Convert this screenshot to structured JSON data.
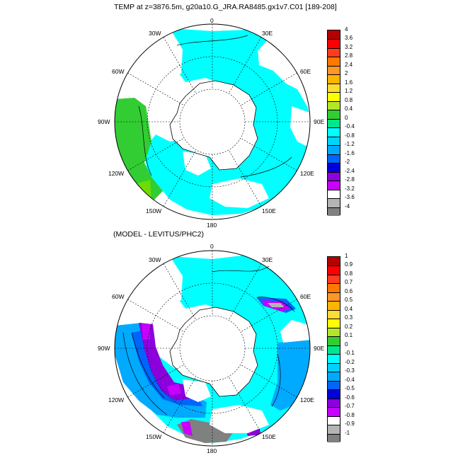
{
  "panels": [
    {
      "title": "TEMP at z=3876.5m, g20a10.G_JRA.RA8485.gx1v7.C01 [189-208]",
      "lon_labels": [
        "0",
        "30E",
        "60E",
        "90E",
        "120E",
        "150E",
        "180",
        "150W",
        "120W",
        "90W",
        "60W",
        "30W"
      ],
      "colorbar": {
        "labels": [
          "4",
          "3.6",
          "3.2",
          "2.8",
          "2.4",
          "2",
          "1.6",
          "1.2",
          "0.8",
          "0.4",
          "0",
          "-0.4",
          "-0.8",
          "-1.2",
          "-1.6",
          "-2",
          "-2.4",
          "-2.8",
          "-3.2",
          "-3.6",
          "-4"
        ],
        "colors": [
          "#b40000",
          "#ff0000",
          "#ff3c1e",
          "#ff7800",
          "#ff9628",
          "#ffb400",
          "#ffdc32",
          "#ffff00",
          "#b4e628",
          "#32cd32",
          "#00e68c",
          "#00ffff",
          "#00d2ff",
          "#00aaff",
          "#0064ff",
          "#0000dc",
          "#8c00dc",
          "#c800ff",
          "#ffffff",
          "#b4b4b4",
          "#808080"
        ]
      }
    },
    {
      "title": "(MODEL - LEVITUS/PHC2)",
      "lon_labels": [
        "0",
        "30E",
        "60E",
        "90E",
        "120E",
        "150E",
        "180",
        "150W",
        "120W",
        "90W",
        "60W",
        "30W"
      ],
      "colorbar": {
        "labels": [
          "1",
          "0.9",
          "0.8",
          "0.7",
          "0.6",
          "0.5",
          "0.4",
          "0.3",
          "0.2",
          "0.1",
          "0",
          "-0.1",
          "-0.2",
          "-0.3",
          "-0.4",
          "-0.5",
          "-0.6",
          "-0.7",
          "-0.8",
          "-0.9",
          "-1"
        ],
        "colors": [
          "#b40000",
          "#ff0000",
          "#ff3c1e",
          "#ff7800",
          "#ff9628",
          "#ffb400",
          "#ffdc32",
          "#ffff00",
          "#b4e628",
          "#32cd32",
          "#00e68c",
          "#00ffff",
          "#00d2ff",
          "#00aaff",
          "#0064ff",
          "#0000dc",
          "#8c00dc",
          "#c800ff",
          "#ffffff",
          "#b4b4b4",
          "#808080"
        ]
      }
    }
  ]
}
